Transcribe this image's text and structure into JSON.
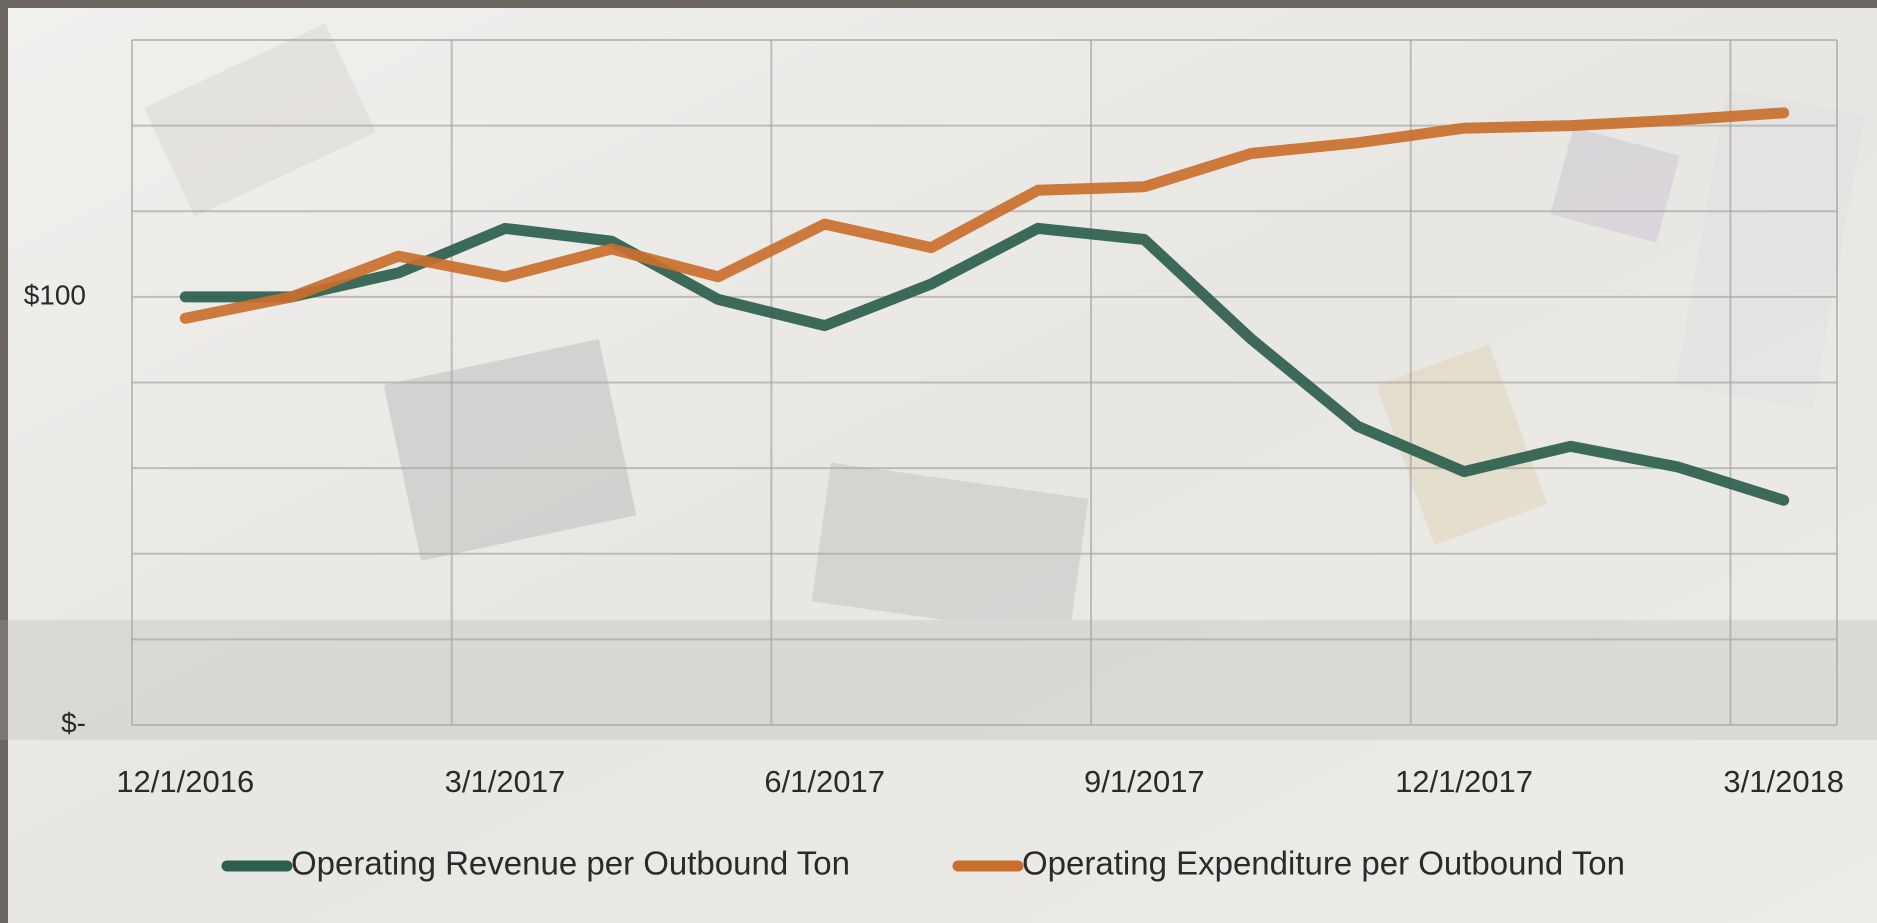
{
  "chart_data": {
    "type": "line",
    "categories": [
      "12/1/2016",
      null,
      null,
      "3/1/2017",
      null,
      null,
      "6/1/2017",
      null,
      null,
      "9/1/2017",
      null,
      null,
      "12/1/2017",
      null,
      null,
      "3/1/2018"
    ],
    "series": [
      {
        "name": "Operating Revenue per Outbound Ton",
        "color": "#2d5e4d",
        "values": [
          100,
          100,
          105.6,
          116,
          113,
          99.4,
          93.3,
          103,
          116,
          113.4,
          90.2,
          69.8,
          59.2,
          65.1,
          60.3,
          52.5
        ]
      },
      {
        "name": "Operating Expenditure per Outbound Ton",
        "color": "#c96f2c",
        "values": [
          95,
          100,
          109.5,
          104.7,
          111.2,
          104.7,
          117,
          111.5,
          124.9,
          125.7,
          133.5,
          136,
          139.4,
          140,
          141.3,
          143
        ]
      }
    ],
    "ylim": [
      0,
      160
    ],
    "yticks": [
      {
        "value": 0,
        "label": "$-"
      },
      {
        "value": 100,
        "label": "$100"
      }
    ],
    "ygrid": [
      0,
      20,
      40,
      60,
      80,
      100,
      120,
      140,
      160
    ],
    "grid": true,
    "legend": "bottom"
  }
}
